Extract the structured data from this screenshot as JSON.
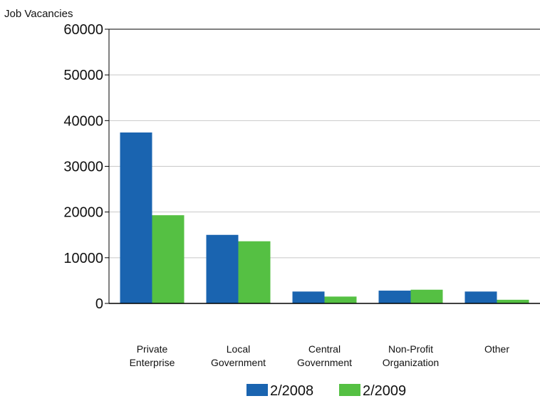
{
  "chart_data": {
    "type": "bar",
    "ylabel": "Job Vacancies",
    "xlabel": "",
    "title": "",
    "ylim": [
      0,
      60000
    ],
    "yticks": [
      0,
      10000,
      20000,
      30000,
      40000,
      50000,
      60000
    ],
    "grid": true,
    "legend_position": "bottom",
    "categories": [
      [
        "Private",
        "Enterprise"
      ],
      [
        "Local",
        "Government"
      ],
      [
        "Central",
        "Government"
      ],
      [
        "Non-Profit",
        "Organization"
      ],
      [
        "Other"
      ]
    ],
    "series": [
      {
        "name": "2/2008",
        "color": "#1a64b0",
        "values": [
          37400,
          15000,
          2600,
          2800,
          2600
        ]
      },
      {
        "name": "2/2009",
        "color": "#55c043",
        "values": [
          19300,
          13600,
          1500,
          3000,
          800
        ]
      }
    ]
  }
}
